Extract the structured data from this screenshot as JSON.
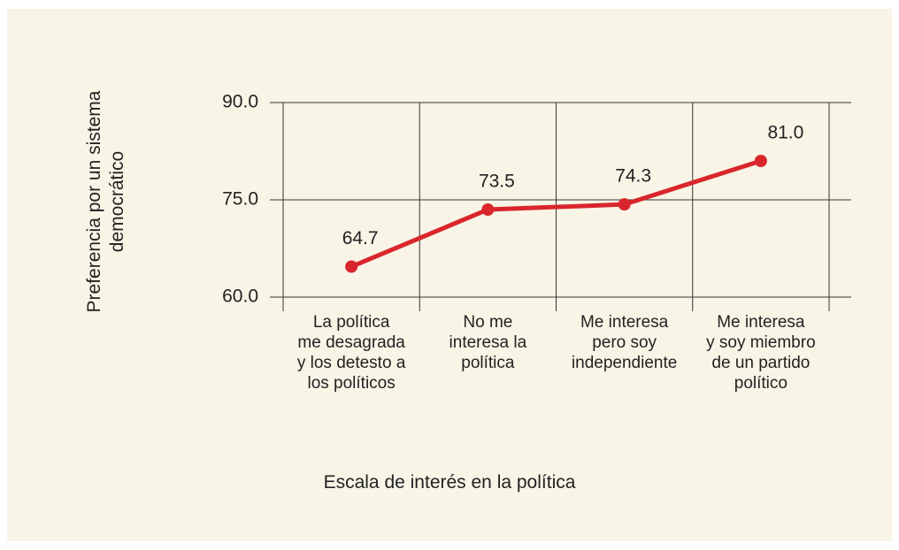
{
  "chart_data": {
    "type": "line",
    "categories": [
      "La política\nme desagrada\ny los detesto a\nlos políticos",
      "No me\ninteresa la\npolítica",
      "Me interesa\npero soy\nindependiente",
      "Me interesa\ny soy miembro\nde un partido\npolítico"
    ],
    "values": [
      64.7,
      73.5,
      74.3,
      81.0
    ],
    "value_labels": [
      "64.7",
      "73.5",
      "74.3",
      "81.0"
    ],
    "color": "#d9262c",
    "ylim": [
      60,
      90
    ],
    "yticks": [
      {
        "value": 60,
        "label": "60.0"
      },
      {
        "value": 75,
        "label": "75.0"
      },
      {
        "value": 90,
        "label": "90.0"
      }
    ],
    "grid": true,
    "xlabel": "Escala de interés en la política",
    "ylabel": "Preferencia por un sistema\ndemocrático"
  }
}
